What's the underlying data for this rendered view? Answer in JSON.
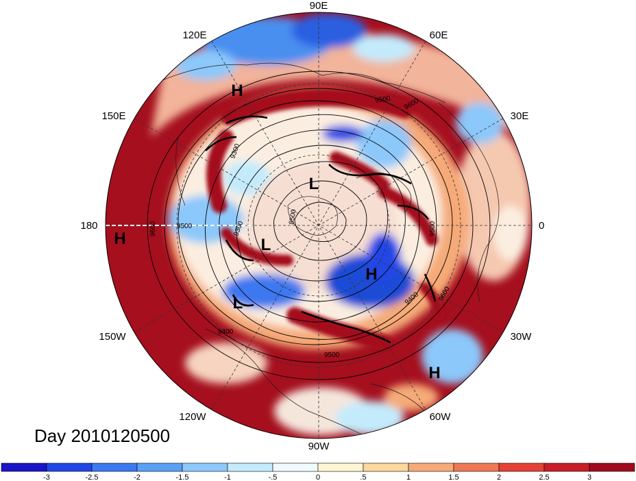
{
  "title": "Day 2010120500",
  "longitude_labels": [
    "90E",
    "60E",
    "30E",
    "0",
    "30W",
    "60W",
    "90W",
    "120W",
    "150W",
    "180",
    "150E",
    "120E"
  ],
  "pressure_centers": [
    {
      "kind": "H",
      "label": "H"
    },
    {
      "kind": "L",
      "label": "L"
    },
    {
      "kind": "L",
      "label": "L"
    },
    {
      "kind": "H",
      "label": "H"
    },
    {
      "kind": "L",
      "label": "L"
    },
    {
      "kind": "H",
      "label": "H"
    },
    {
      "kind": "H",
      "label": "H"
    }
  ],
  "contour_labels": [
    "9500",
    "9600",
    "9300",
    "9500",
    "9600",
    "9300",
    "8500",
    "9500",
    "9400",
    "9600",
    "9400",
    "9500"
  ],
  "colorbar": {
    "ticks": [
      "-3",
      "-2.5",
      "-2",
      "-1.5",
      "-1",
      "-.5",
      "0",
      ".5",
      "1",
      "1.5",
      "2",
      "2.5",
      "3"
    ],
    "colors": [
      "#1a14c8",
      "#2046e6",
      "#3c78f0",
      "#5aa0f5",
      "#8cc8fa",
      "#c3ebfc",
      "#f0faff",
      "#fff5d2",
      "#fad89e",
      "#f5aa78",
      "#f07855",
      "#e64137",
      "#c81e28",
      "#a00a1e"
    ]
  },
  "colors": {
    "deep_red": "#a50f1e",
    "red": "#d22a2e",
    "orange": "#f08c6e",
    "light": "#fbeee0",
    "blue": "#4a8ff0",
    "deep_blue": "#1f4bd6"
  }
}
